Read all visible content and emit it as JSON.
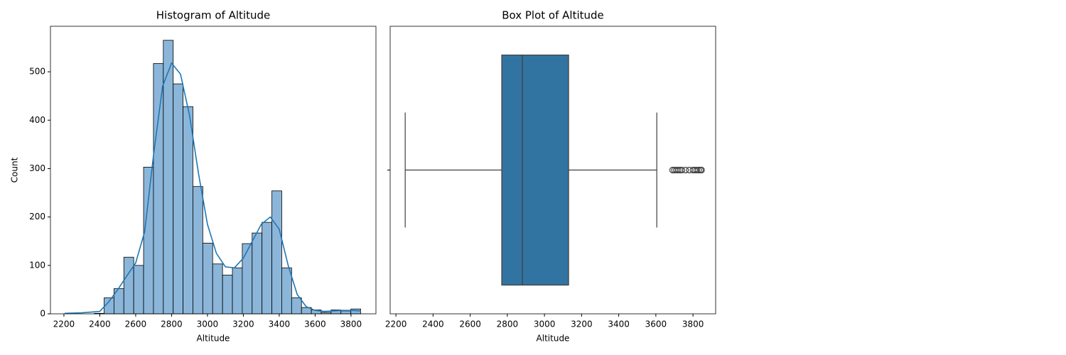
{
  "chart_data": [
    {
      "type": "histogram",
      "title": "Histogram of Altitude",
      "xlabel": "Altitude",
      "ylabel": "Count",
      "bins": [
        2204,
        2259,
        2314,
        2369,
        2424,
        2479,
        2534,
        2589,
        2644,
        2699,
        2754,
        2809,
        2864,
        2919,
        2974,
        3029,
        3084,
        3139,
        3194,
        3249,
        3304,
        3359,
        3414,
        3469,
        3524,
        3579,
        3634,
        3689,
        3744,
        3799,
        3854
      ],
      "values": [
        0,
        0,
        0,
        1,
        33,
        52,
        117,
        100,
        303,
        517,
        565,
        475,
        428,
        263,
        146,
        103,
        80,
        95,
        145,
        167,
        189,
        254,
        95,
        33,
        13,
        8,
        3,
        8,
        6,
        10
      ],
      "color": "#8cb6d9",
      "edgecolor": "#000000",
      "kde": {
        "color": "#1f77b4",
        "x": [
          2204,
          2300,
          2400,
          2450,
          2500,
          2550,
          2600,
          2650,
          2700,
          2750,
          2800,
          2850,
          2900,
          2950,
          3000,
          3050,
          3100,
          3150,
          3200,
          3250,
          3300,
          3350,
          3400,
          3450,
          3500,
          3550,
          3600,
          3650,
          3700,
          3750,
          3800,
          3855
        ],
        "y": [
          1,
          2,
          5,
          25,
          50,
          78,
          105,
          170,
          330,
          470,
          518,
          495,
          410,
          290,
          185,
          125,
          97,
          95,
          115,
          150,
          185,
          200,
          175,
          100,
          40,
          15,
          7,
          5,
          6,
          7,
          7,
          6
        ]
      },
      "xlim": [
        2125,
        3939
      ],
      "xticks": [
        2200,
        2400,
        2600,
        2800,
        3000,
        3200,
        3400,
        3600,
        3800
      ],
      "ylim": [
        0,
        594
      ],
      "yticks": [
        0,
        100,
        200,
        300,
        400,
        500
      ]
    },
    {
      "type": "box",
      "title": "Box Plot of Altitude",
      "xlabel": "Altitude",
      "whislo": 2250,
      "q1": 2770,
      "median": 2881,
      "q3": 3130,
      "whishi": 3605,
      "fliers": [
        3690,
        3700,
        3710,
        3720,
        3730,
        3740,
        3760,
        3780,
        3800,
        3810,
        3820,
        3830,
        3840,
        3846
      ],
      "color": "#3274a1",
      "xlim": [
        2169,
        3922
      ],
      "xticks": [
        2200,
        2400,
        2600,
        2800,
        3000,
        3200,
        3400,
        3600,
        3800
      ]
    }
  ]
}
